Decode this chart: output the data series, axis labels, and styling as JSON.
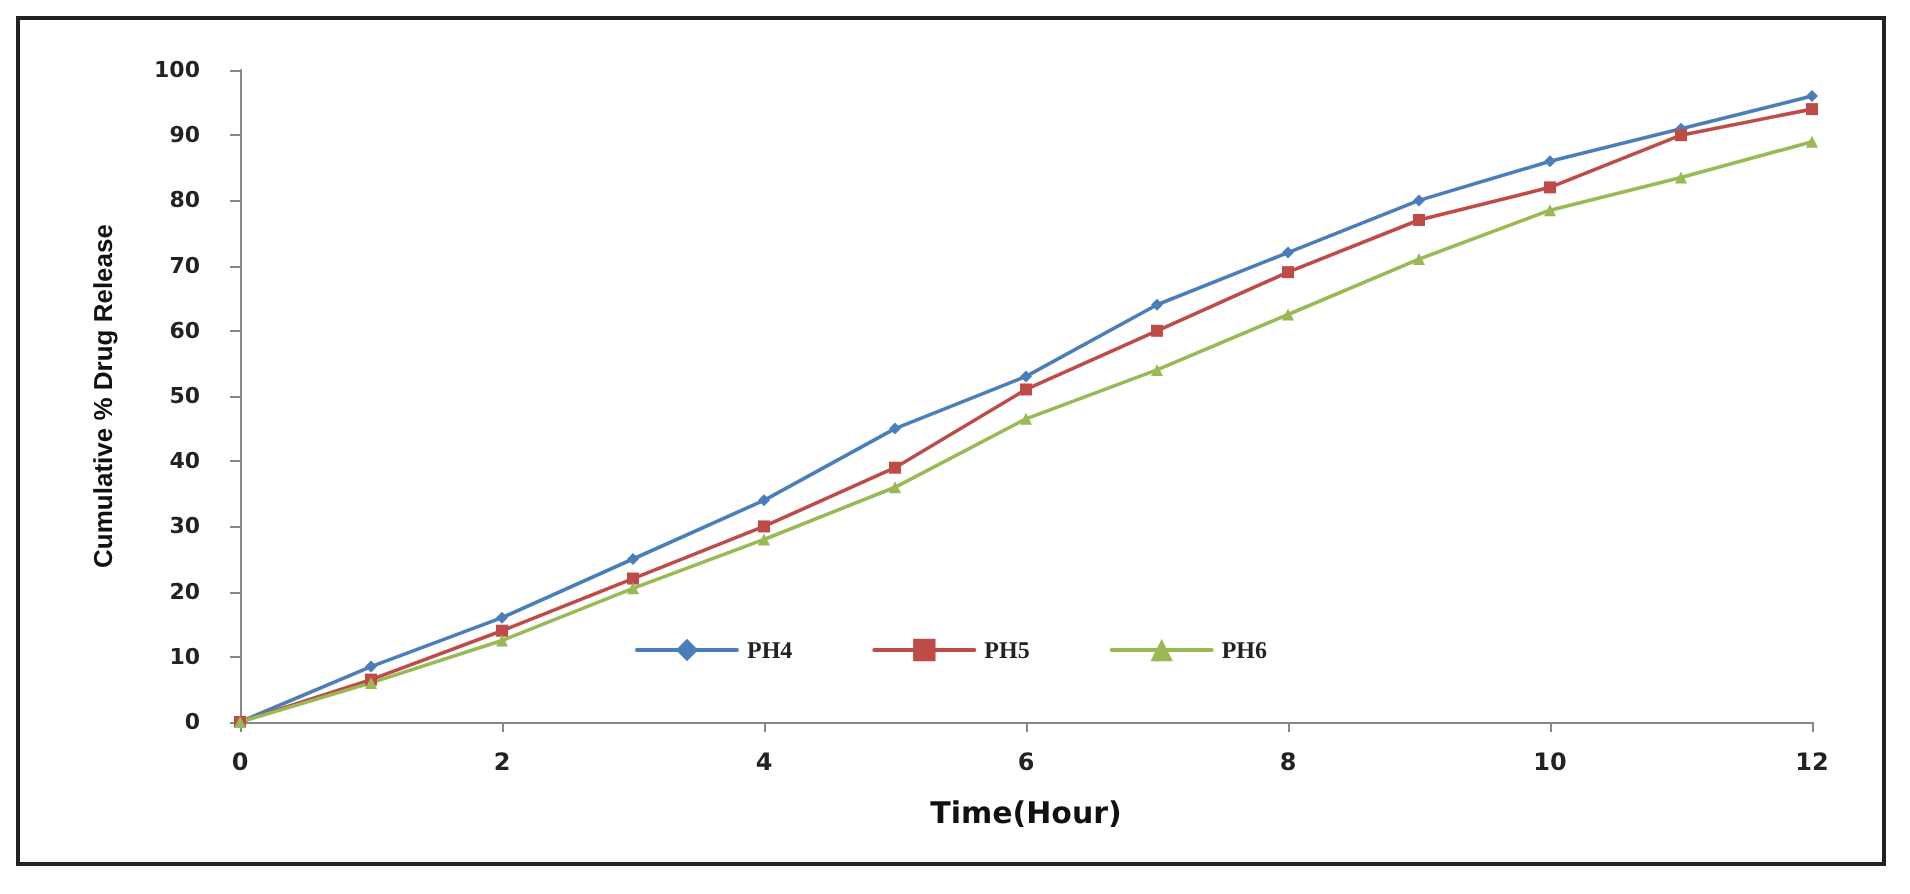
{
  "chart_data": {
    "type": "line",
    "xlabel": "Time(Hour)",
    "ylabel": "Cumulative % Drug Release",
    "x": [
      0,
      1,
      2,
      3,
      4,
      5,
      6,
      7,
      8,
      9,
      10,
      11,
      12
    ],
    "series": [
      {
        "name": "PH4",
        "color": "#4a7ebb",
        "marker": "diamond",
        "values": [
          0,
          8.5,
          16,
          25,
          34,
          45,
          53,
          64,
          72,
          80,
          86,
          91,
          96
        ]
      },
      {
        "name": "PH5",
        "color": "#be4b48",
        "marker": "square",
        "values": [
          0,
          6.5,
          14,
          22,
          30,
          39,
          51,
          60,
          69,
          77,
          82,
          90,
          94
        ]
      },
      {
        "name": "PH6",
        "color": "#98b954",
        "marker": "triangle",
        "values": [
          0,
          6,
          12.5,
          20.5,
          28,
          36,
          46.5,
          54,
          62.5,
          71,
          78.5,
          83.5,
          89
        ]
      }
    ],
    "xlim": [
      0,
      12
    ],
    "xticks": [
      0,
      2,
      4,
      6,
      8,
      10,
      12
    ],
    "ylim": [
      0,
      100
    ],
    "yticks": [
      0,
      10,
      20,
      30,
      40,
      50,
      60,
      70,
      80,
      90,
      100
    ],
    "grid": false,
    "legend": "bottom",
    "line_style": "solid"
  }
}
